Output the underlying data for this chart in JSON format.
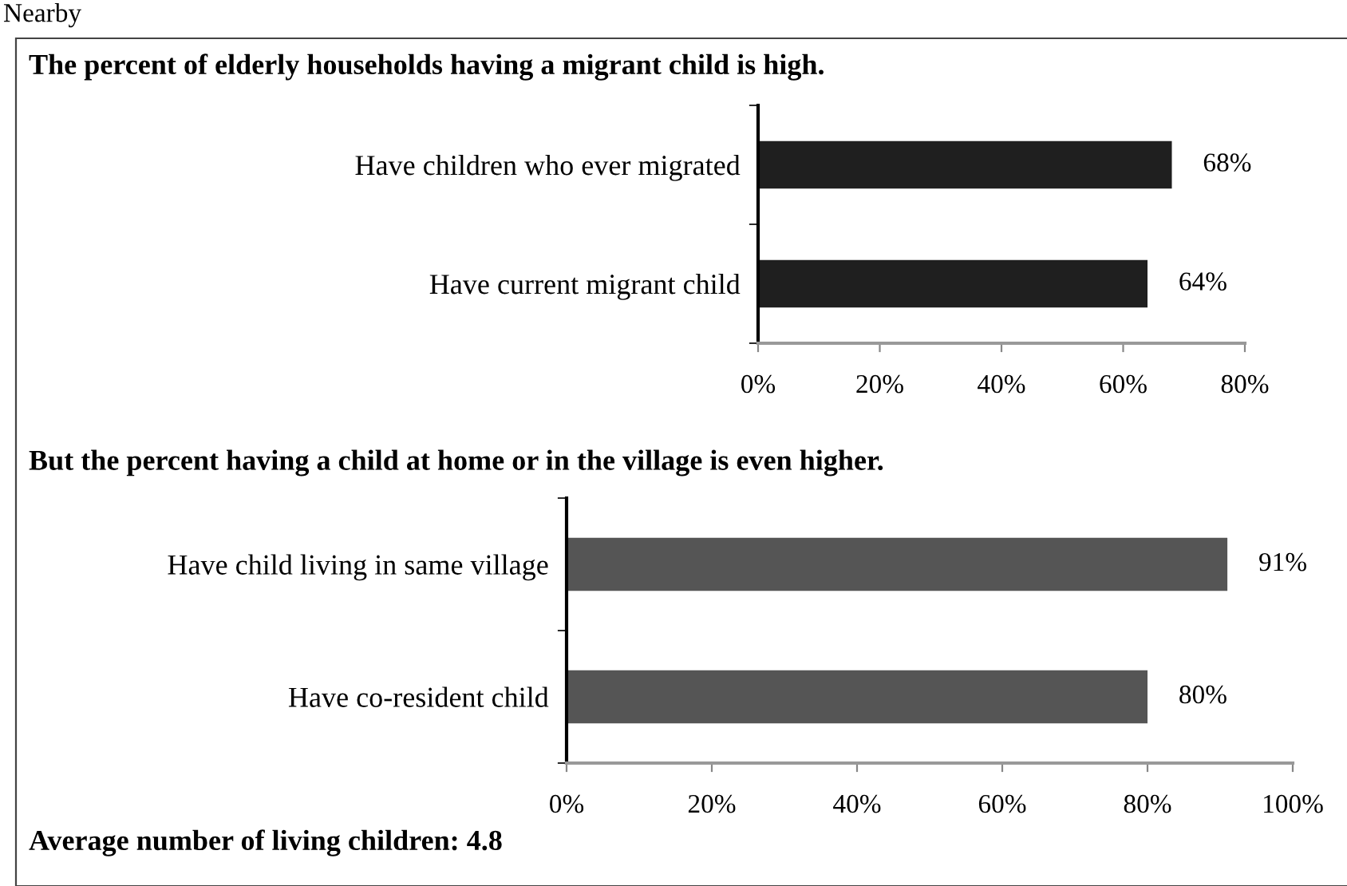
{
  "chart_data": [
    {
      "type": "bar",
      "orientation": "horizontal",
      "title": "The percent of elderly households having a migrant child is high.",
      "categories": [
        "Have children who ever migrated",
        "Have current migrant child"
      ],
      "values": [
        68,
        64
      ],
      "value_labels": [
        "68%",
        "64%"
      ],
      "color": "#1f1f1f",
      "xlim": [
        0,
        80
      ],
      "xticks": [
        {
          "value": 0,
          "label": "0%"
        },
        {
          "value": 20,
          "label": "20%"
        },
        {
          "value": 40,
          "label": "40%"
        },
        {
          "value": 60,
          "label": "60%"
        },
        {
          "value": 80,
          "label": "80%"
        }
      ],
      "grid": false,
      "legend": false,
      "annotations": [
        "Nearby"
      ]
    },
    {
      "type": "bar",
      "orientation": "horizontal",
      "title": "But the percent having a child at home or in the village is even higher.",
      "categories": [
        "Have child living in same village",
        "Have co-resident child"
      ],
      "values": [
        91,
        80
      ],
      "value_labels": [
        "91%",
        "80%"
      ],
      "color": "#555555",
      "xlim": [
        0,
        100
      ],
      "xticks": [
        {
          "value": 0,
          "label": "0%"
        },
        {
          "value": 20,
          "label": "20%"
        },
        {
          "value": 40,
          "label": "40%"
        },
        {
          "value": 60,
          "label": "60%"
        },
        {
          "value": 80,
          "label": "80%"
        },
        {
          "value": 100,
          "label": "100%"
        }
      ],
      "grid": false,
      "legend": false,
      "annotations": [
        "Average number of living children: 4.8"
      ]
    }
  ]
}
